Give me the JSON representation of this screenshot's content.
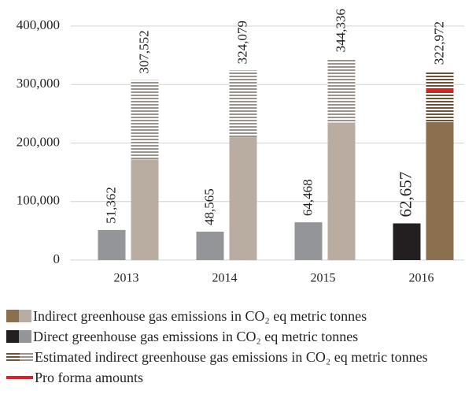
{
  "chart_data": {
    "type": "bar",
    "categories": [
      "2013",
      "2014",
      "2015",
      "2016"
    ],
    "series": [
      {
        "name": "Direct greenhouse gas emissions in CO₂ eq metric tonnes",
        "colors": [
          "#939598",
          "#939598",
          "#939598",
          "#231f20"
        ],
        "label_colors": [
          "#a7a9ac",
          "#a7a9ac",
          "#a7a9ac",
          "#231f20"
        ],
        "values": [
          51362,
          48565,
          64468,
          62657
        ],
        "value_labels": [
          "51,362",
          "48,565",
          "64,468",
          "62,657"
        ]
      },
      {
        "name": "Indirect greenhouse gas emissions in CO₂ eq metric tonnes",
        "colors": [
          "#b8ada0",
          "#b8ada0",
          "#b8ada0",
          "#8b6f4e"
        ],
        "values": [
          172000,
          210000,
          235000,
          236000
        ]
      },
      {
        "name": "Estimated indirect greenhouse gas emissions in CO₂ eq metric tonnes",
        "colors": [
          "#9a938c",
          "#9a938c",
          "#9a938c",
          "#6b5237"
        ],
        "values": [
          135552,
          114079,
          109336,
          86972
        ]
      },
      {
        "name": "Pro forma amounts",
        "color": "#e31e24",
        "values": [
          null,
          null,
          null,
          290000
        ]
      }
    ],
    "totals": {
      "values": [
        307552,
        324079,
        344336,
        322972
      ],
      "value_labels": [
        "307,552",
        "324,079",
        "344,336",
        "322,972"
      ],
      "label_colors": [
        "#231f20",
        "#231f20",
        "#231f20",
        "#8b6f4e"
      ]
    },
    "ylim": [
      0,
      400000
    ],
    "yticks": [
      0,
      {
        "value": 100000,
        "label": "100,000"
      },
      {
        "value": 200000,
        "label": "200,000"
      },
      {
        "value": 300000,
        "label": "300,000"
      },
      {
        "value": 400000,
        "label": "400,000"
      }
    ],
    "grid": true
  }
}
